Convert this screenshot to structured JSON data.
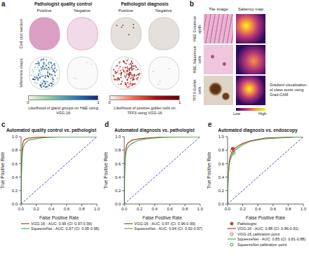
{
  "panel_a": {
    "label": "a",
    "rows": [
      "Cell clot section",
      "Inference maps"
    ],
    "groups": [
      {
        "title": "Pathologist quality control",
        "columns": [
          "Positive",
          "Negative"
        ],
        "colorbar": {
          "range": [
            0,
            1
          ],
          "ticks": [
            0,
            1
          ],
          "colors": [
            "#eef7d9",
            "#7fc7a6",
            "#2c7fb8",
            "#0c2c84"
          ],
          "label": "Likelihood of gland groups on H&E using VGG-16"
        }
      },
      {
        "title": "Pathologist diagnosis",
        "columns": [
          "Positive",
          "Negative"
        ],
        "colorbar": {
          "range": [
            0,
            1
          ],
          "ticks": [
            0,
            1
          ],
          "colors": [
            "#fff5f0",
            "#fb6a4a",
            "#a50f15",
            "#67000d"
          ],
          "label": "Likelihood of positive goblet cells on TFF3 using VGG-16"
        }
      }
    ]
  },
  "panel_b": {
    "label": "b",
    "columns": [
      "Tile image",
      "Saliency map"
    ],
    "rows": [
      "H&E Columnar epith.",
      "H&E Squamous cells",
      "TFF3 Goblet cells"
    ],
    "colorbar": {
      "low": "Low",
      "high": "High",
      "colors": [
        "#2d0a5e",
        "#b5367a",
        "#f89540",
        "#f0f921"
      ],
      "label": "Gradient visualisation of class score using Grad-CAM"
    }
  },
  "chart_data": [
    {
      "label": "c",
      "type": "line",
      "title": "Automated quality control vs. pathologist",
      "x_label": "False Positive Rate",
      "y_label": "True Positive Rate",
      "xlim": [
        0,
        1
      ],
      "ylim": [
        0,
        1
      ],
      "xticks": [
        {
          "value": 0,
          "label": "0.0"
        },
        {
          "value": 0.2,
          "label": "0.2"
        },
        {
          "value": 0.4,
          "label": "0.4"
        },
        {
          "value": 0.6,
          "label": "0.6"
        },
        {
          "value": 0.8,
          "label": "0.8"
        },
        {
          "value": 1,
          "label": "1.0"
        }
      ],
      "yticks": [
        {
          "value": 0,
          "label": "0.0"
        },
        {
          "value": 0.2,
          "label": "0.2"
        },
        {
          "value": 0.4,
          "label": "0.4"
        },
        {
          "value": 0.6,
          "label": "0.6"
        },
        {
          "value": 0.8,
          "label": "0.8"
        },
        {
          "value": 1,
          "label": "1.0"
        }
      ],
      "x": [
        0,
        0.005,
        0.01,
        0.02,
        0.03,
        0.05,
        0.08,
        0.1,
        0.15,
        0.2,
        0.3,
        0.5,
        1
      ],
      "reference_line": {
        "x": [
          0,
          1
        ],
        "y": [
          0,
          1
        ],
        "color": "#3b4cc0",
        "line_style": "dashed"
      },
      "series": [
        {
          "name": "VGG-16 - AUC: 0.99 (CI: 0.97-0.99)",
          "color": "#c0392b",
          "values": [
            0,
            0.55,
            0.75,
            0.88,
            0.93,
            0.96,
            0.97,
            0.98,
            0.985,
            0.99,
            0.995,
            1,
            1
          ]
        },
        {
          "name": "SqueezeNet - AUC: 0.97 (CI: 0.95-0.98)",
          "color": "#4caf50",
          "values": [
            0,
            0.4,
            0.6,
            0.78,
            0.85,
            0.9,
            0.93,
            0.95,
            0.96,
            0.97,
            0.985,
            0.995,
            1
          ]
        }
      ]
    },
    {
      "label": "d",
      "type": "line",
      "title": "Automated diagnosis vs. pathologist",
      "x_label": "False Positive Rate",
      "y_label": "True Positive Rate",
      "xlim": [
        0,
        1
      ],
      "ylim": [
        0,
        1
      ],
      "xticks": [
        {
          "value": 0,
          "label": "0.0"
        },
        {
          "value": 0.2,
          "label": "0.2"
        },
        {
          "value": 0.4,
          "label": "0.4"
        },
        {
          "value": 0.6,
          "label": "0.6"
        },
        {
          "value": 0.8,
          "label": "0.8"
        },
        {
          "value": 1,
          "label": "1.0"
        }
      ],
      "yticks": [
        {
          "value": 0,
          "label": "0.0"
        },
        {
          "value": 0.2,
          "label": "0.2"
        },
        {
          "value": 0.4,
          "label": "0.4"
        },
        {
          "value": 0.6,
          "label": "0.6"
        },
        {
          "value": 0.8,
          "label": "0.8"
        },
        {
          "value": 1,
          "label": "1.0"
        }
      ],
      "x": [
        0,
        0.005,
        0.01,
        0.02,
        0.03,
        0.05,
        0.08,
        0.1,
        0.15,
        0.2,
        0.3,
        0.5,
        1
      ],
      "reference_line": {
        "x": [
          0,
          1
        ],
        "y": [
          0,
          1
        ],
        "color": "#3b4cc0",
        "line_style": "dashed"
      },
      "series": [
        {
          "name": "VGG-16 - AUC: 0.97 (CI: 0.96-0.99)",
          "color": "#c0392b",
          "values": [
            0,
            0.5,
            0.7,
            0.82,
            0.87,
            0.91,
            0.93,
            0.95,
            0.96,
            0.97,
            0.98,
            0.995,
            1
          ]
        },
        {
          "name": "SqueezeNet - AUC: 0.94 (CI: 0.92-0.97)",
          "color": "#4caf50",
          "values": [
            0,
            0.4,
            0.6,
            0.75,
            0.8,
            0.85,
            0.88,
            0.9,
            0.93,
            0.95,
            0.97,
            0.99,
            1
          ]
        }
      ]
    },
    {
      "label": "e",
      "type": "line",
      "title": "Automated diagnosis vs. endoscopy",
      "x_label": "False Positive Rate",
      "y_label": "True Positive Rate",
      "xlim": [
        0,
        1
      ],
      "ylim": [
        0,
        1
      ],
      "xticks": [
        {
          "value": 0,
          "label": "0.0"
        },
        {
          "value": 0.2,
          "label": "0.2"
        },
        {
          "value": 0.4,
          "label": "0.4"
        },
        {
          "value": 0.6,
          "label": "0.6"
        },
        {
          "value": 0.8,
          "label": "0.8"
        },
        {
          "value": 1,
          "label": "1.0"
        }
      ],
      "yticks": [
        {
          "value": 0,
          "label": "0.0"
        },
        {
          "value": 0.2,
          "label": "0.2"
        },
        {
          "value": 0.4,
          "label": "0.4"
        },
        {
          "value": 0.6,
          "label": "0.6"
        },
        {
          "value": 0.8,
          "label": "0.8"
        },
        {
          "value": 1,
          "label": "1.0"
        }
      ],
      "x": [
        0,
        0.005,
        0.01,
        0.02,
        0.03,
        0.05,
        0.08,
        0.1,
        0.15,
        0.2,
        0.3,
        0.5,
        1
      ],
      "reference_line": {
        "x": [
          0,
          1
        ],
        "y": [
          0,
          1
        ],
        "color": "#3b4cc0",
        "line_style": "dashed"
      },
      "series": [
        {
          "name": "Pathologist",
          "type": "scatter",
          "marker": "filled_circle",
          "color": "#c0392b",
          "x": [
            0.07
          ],
          "values": [
            0.82
          ]
        },
        {
          "name": "VGG-16 - AUC: 0.88 (CI: 0.86-0.91)",
          "color": "#c0392b",
          "values": [
            0,
            0.3,
            0.45,
            0.6,
            0.68,
            0.75,
            0.8,
            0.83,
            0.87,
            0.9,
            0.94,
            0.98,
            1
          ]
        },
        {
          "name": "VGG-16 calibration point",
          "type": "scatter",
          "marker": "circle",
          "color": "#d9534f",
          "x": [
            0.06
          ],
          "values": [
            0.79
          ]
        },
        {
          "name": "SqueezeNet - AUC: 0.85 (CI: 0.81-0.88)",
          "color": "#4caf50",
          "values": [
            0,
            0.25,
            0.4,
            0.55,
            0.63,
            0.7,
            0.76,
            0.8,
            0.84,
            0.88,
            0.93,
            0.97,
            1
          ]
        },
        {
          "name": "SqueezeNet calibration point",
          "type": "scatter",
          "marker": "circle",
          "color": "#3a9d3a",
          "x": [
            0.08
          ],
          "values": [
            0.76
          ]
        }
      ]
    }
  ]
}
